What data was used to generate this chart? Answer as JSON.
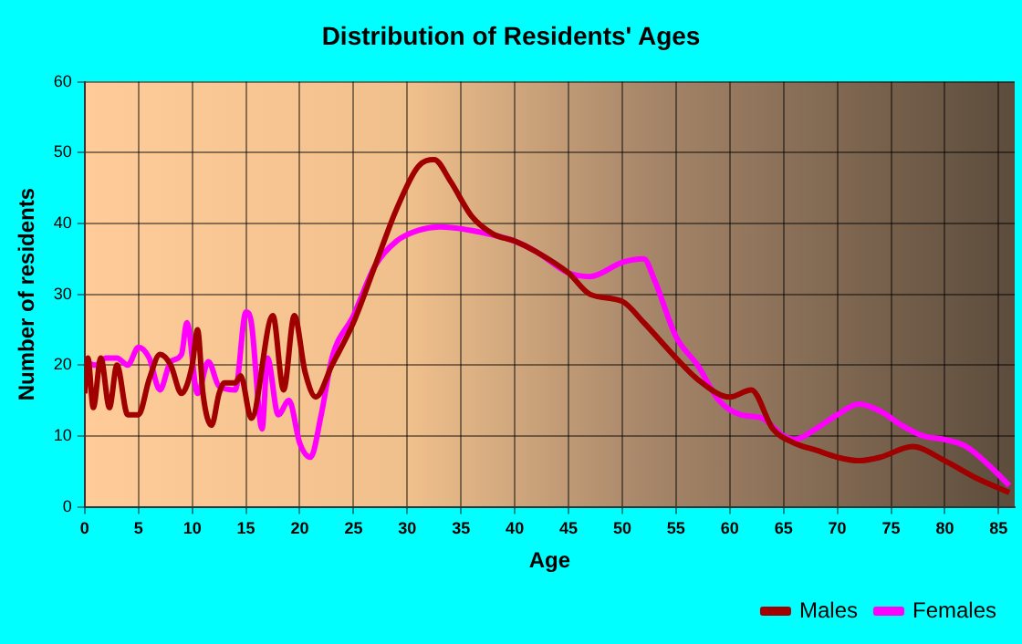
{
  "chart_data": {
    "type": "line",
    "title": "Distribution of Residents' Ages",
    "xlabel": "Age",
    "ylabel": "Number of residents",
    "xlim": [
      0,
      86.5
    ],
    "xticks": [
      0,
      5,
      10,
      15,
      20,
      25,
      30,
      35,
      40,
      45,
      50,
      55,
      60,
      65,
      70,
      75,
      80,
      85
    ],
    "ylim": [
      0,
      60
    ],
    "yticks": [
      0,
      10,
      20,
      30,
      40,
      50,
      60
    ],
    "grid": true,
    "legend": "bottom right",
    "marker": "none",
    "line_style": "solid",
    "series": [
      {
        "name": "Males",
        "color": "#a00000",
        "x": [
          0,
          0.3,
          0.8,
          1.5,
          2.3,
          3,
          4,
          5,
          6,
          7,
          8,
          9,
          10,
          10.5,
          11,
          11.8,
          12.5,
          13,
          14,
          14.5,
          15.5,
          17.5,
          18.5,
          19.5,
          20.5,
          21.5,
          23,
          25,
          27,
          29,
          31,
          32.5,
          34,
          36,
          38,
          40,
          42,
          45,
          47,
          50,
          52,
          55,
          57,
          60,
          62,
          64,
          66,
          68,
          70,
          72,
          74,
          77,
          80,
          83,
          86
        ],
        "values": [
          16,
          21,
          14,
          21,
          14,
          20,
          13,
          13,
          18,
          21.5,
          20,
          16,
          20,
          25,
          16,
          11.5,
          16,
          17.5,
          17.5,
          18.5,
          12.5,
          27,
          16.5,
          27,
          19,
          15.5,
          20,
          26,
          34,
          42,
          48,
          49,
          46,
          41,
          38.5,
          37.5,
          36,
          33,
          30,
          29,
          26,
          21,
          18,
          15.5,
          16.5,
          11,
          9,
          8,
          7,
          6.5,
          7,
          8.5,
          6.5,
          4,
          2
        ]
      },
      {
        "name": "Females",
        "color": "#ff00ff",
        "x": [
          0,
          1,
          2,
          3,
          4,
          5,
          6,
          7,
          8,
          9,
          9.5,
          10.5,
          11.5,
          12.5,
          14,
          15,
          15.5,
          16.5,
          17,
          18,
          19,
          20,
          21,
          22,
          23,
          25,
          27,
          29,
          31,
          33,
          36,
          40,
          42,
          45,
          47,
          50,
          52,
          53,
          55,
          57,
          59,
          61,
          63,
          65,
          66,
          68,
          70,
          72,
          74,
          76,
          78,
          80,
          82,
          84,
          86
        ],
        "values": [
          20.5,
          20,
          21,
          21,
          20,
          22.5,
          21,
          16.5,
          20.5,
          21.5,
          26,
          16,
          20.5,
          17,
          16.5,
          27.5,
          26,
          11,
          21,
          13,
          15,
          9,
          7,
          13,
          21,
          27,
          34,
          37.5,
          39,
          39.5,
          39,
          37.5,
          36,
          33,
          32.5,
          34.5,
          35,
          32,
          24,
          20,
          15,
          13,
          12.5,
          10,
          9.5,
          11,
          13,
          14.5,
          13.5,
          11.5,
          10,
          9.5,
          8.5,
          6,
          3
        ]
      }
    ]
  }
}
